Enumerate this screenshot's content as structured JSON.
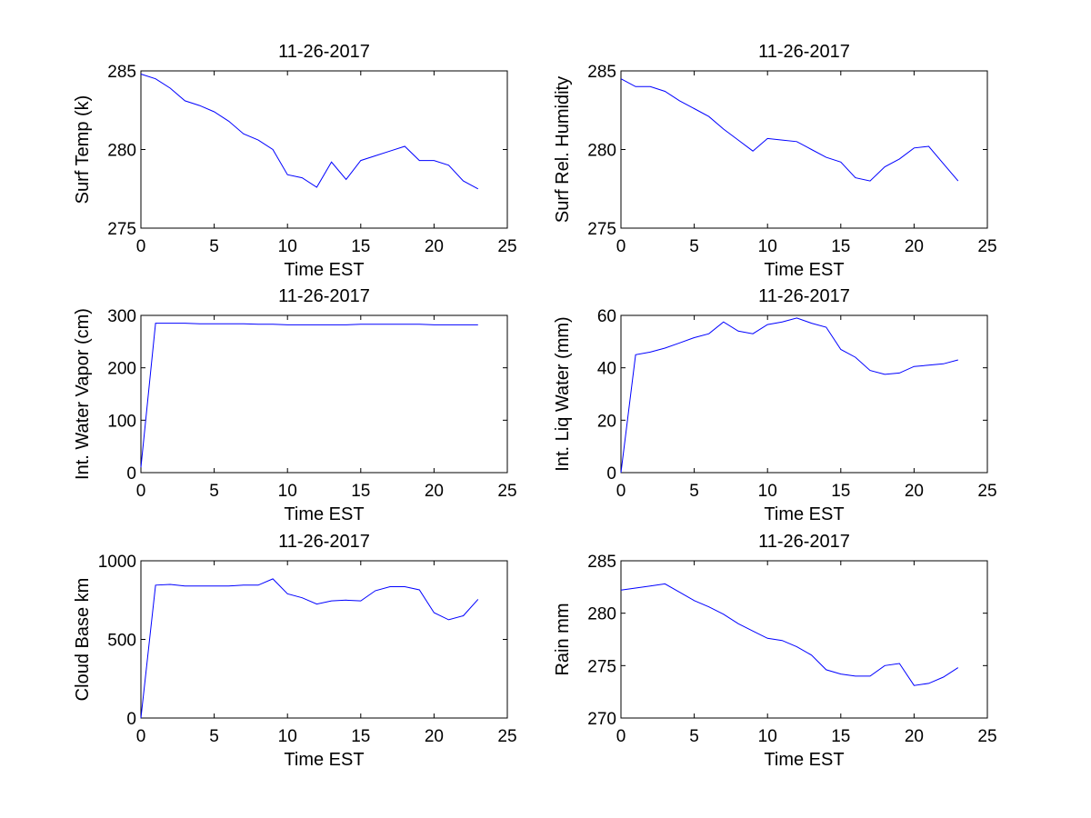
{
  "chart_data": [
    {
      "type": "line",
      "title": "11-26-2017",
      "xlabel": "Time EST",
      "ylabel": "Surf Temp (k)",
      "xlim": [
        0,
        25
      ],
      "ylim": [
        275,
        285
      ],
      "xticks": [
        0,
        5,
        10,
        15,
        20,
        25
      ],
      "yticks": [
        275,
        280,
        285
      ],
      "grid": false,
      "line_color": "#0000ff",
      "x": [
        0,
        1,
        2,
        3,
        4,
        5,
        6,
        7,
        8,
        9,
        10,
        11,
        12,
        13,
        14,
        15,
        16,
        17,
        18,
        19,
        20,
        21,
        22,
        23
      ],
      "y": [
        284.8,
        284.5,
        283.9,
        283.1,
        282.8,
        282.4,
        281.8,
        281.0,
        280.6,
        280.0,
        278.4,
        278.2,
        277.6,
        279.2,
        278.1,
        279.3,
        279.6,
        279.9,
        280.2,
        279.3,
        279.3,
        279.0,
        278.0,
        277.5
      ]
    },
    {
      "type": "line",
      "title": "11-26-2017",
      "xlabel": "Time EST",
      "ylabel": "Surf Rel. Humidity",
      "xlim": [
        0,
        25
      ],
      "ylim": [
        275,
        285
      ],
      "xticks": [
        0,
        5,
        10,
        15,
        20,
        25
      ],
      "yticks": [
        275,
        280,
        285
      ],
      "grid": false,
      "line_color": "#0000ff",
      "x": [
        0,
        1,
        2,
        3,
        4,
        5,
        6,
        7,
        8,
        9,
        10,
        11,
        12,
        13,
        14,
        15,
        16,
        17,
        18,
        19,
        20,
        21,
        22,
        23
      ],
      "y": [
        284.5,
        284.0,
        284.0,
        283.7,
        283.1,
        282.6,
        282.1,
        281.3,
        280.6,
        279.9,
        280.7,
        280.6,
        280.5,
        280.0,
        279.5,
        279.2,
        278.2,
        278.0,
        278.9,
        279.4,
        280.1,
        280.2,
        279.1,
        278.0
      ]
    },
    {
      "type": "line",
      "title": "11-26-2017",
      "xlabel": "Time EST",
      "ylabel": "Int. Water Vapor (cm)",
      "xlim": [
        0,
        25
      ],
      "ylim": [
        0,
        300
      ],
      "xticks": [
        0,
        5,
        10,
        15,
        20,
        25
      ],
      "yticks": [
        0,
        100,
        200,
        300
      ],
      "grid": false,
      "line_color": "#0000ff",
      "x": [
        0,
        1,
        2,
        3,
        4,
        5,
        6,
        7,
        8,
        9,
        10,
        11,
        12,
        13,
        14,
        15,
        16,
        17,
        18,
        19,
        20,
        21,
        22,
        23
      ],
      "y": [
        10,
        285,
        285,
        285,
        284,
        284,
        284,
        284,
        283,
        283,
        282,
        282,
        282,
        282,
        282,
        283,
        283,
        283,
        283,
        283,
        282,
        282,
        282,
        282
      ]
    },
    {
      "type": "line",
      "title": "11-26-2017",
      "xlabel": "Time EST",
      "ylabel": "Int. Liq Water (mm)",
      "xlim": [
        0,
        25
      ],
      "ylim": [
        0,
        60
      ],
      "xticks": [
        0,
        5,
        10,
        15,
        20,
        25
      ],
      "yticks": [
        0,
        20,
        40,
        60
      ],
      "grid": false,
      "line_color": "#0000ff",
      "x": [
        0,
        1,
        2,
        3,
        4,
        5,
        6,
        7,
        8,
        9,
        10,
        11,
        12,
        13,
        14,
        15,
        16,
        17,
        18,
        19,
        20,
        21,
        22,
        23
      ],
      "y": [
        0,
        45,
        46,
        47.5,
        49.5,
        51.5,
        53,
        57.5,
        54,
        53,
        56.5,
        57.5,
        59,
        57,
        55.5,
        47,
        44,
        39,
        37.5,
        38,
        40.5,
        41,
        41.5,
        43
      ]
    },
    {
      "type": "line",
      "title": "11-26-2017",
      "xlabel": "Time EST",
      "ylabel": "Cloud Base km",
      "xlim": [
        0,
        25
      ],
      "ylim": [
        0,
        1000
      ],
      "xticks": [
        0,
        5,
        10,
        15,
        20,
        25
      ],
      "yticks": [
        0,
        500,
        1000
      ],
      "grid": false,
      "line_color": "#0000ff",
      "x": [
        0,
        1,
        2,
        3,
        4,
        5,
        6,
        7,
        8,
        9,
        10,
        11,
        12,
        13,
        14,
        15,
        16,
        17,
        18,
        19,
        20,
        21,
        22,
        23
      ],
      "y": [
        0,
        845,
        850,
        840,
        840,
        840,
        840,
        845,
        845,
        885,
        790,
        765,
        725,
        745,
        750,
        745,
        810,
        835,
        835,
        815,
        670,
        625,
        650,
        755
      ]
    },
    {
      "type": "line",
      "title": "11-26-2017",
      "xlabel": "Time EST",
      "ylabel": "Rain mm",
      "xlim": [
        0,
        25
      ],
      "ylim": [
        270,
        285
      ],
      "xticks": [
        0,
        5,
        10,
        15,
        20,
        25
      ],
      "yticks": [
        270,
        275,
        280,
        285
      ],
      "grid": false,
      "line_color": "#0000ff",
      "x": [
        0,
        1,
        2,
        3,
        4,
        5,
        6,
        7,
        8,
        9,
        10,
        11,
        12,
        13,
        14,
        15,
        16,
        17,
        18,
        19,
        20,
        21,
        22,
        23
      ],
      "y": [
        282.2,
        282.4,
        282.6,
        282.8,
        282.0,
        281.2,
        280.6,
        279.9,
        279.0,
        278.3,
        277.6,
        277.4,
        276.8,
        276.0,
        274.6,
        274.2,
        274.0,
        274.0,
        275.0,
        275.2,
        273.1,
        273.3,
        273.9,
        274.8
      ]
    }
  ]
}
